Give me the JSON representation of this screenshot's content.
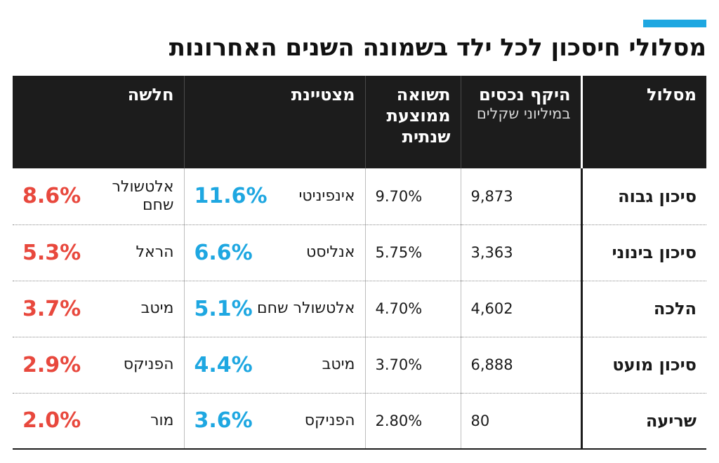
{
  "title": "מסלולי חיסכון לכל ילד בשמונה השנים האחרונות",
  "headers": {
    "route": "מסלול",
    "assets": "היקף נכסים",
    "assets_unit": "במיליוני שקלים",
    "return": "תשואה ממוצעת שנתית",
    "best": "מצטיינת",
    "worst": "חלשה"
  },
  "colors": {
    "accent": "#1ea7e1",
    "best": "#1ea7e1",
    "worst": "#e8483d",
    "header_bg": "#1c1c1c"
  },
  "chart_data": {
    "type": "table",
    "columns": [
      "מסלול",
      "היקף נכסים במיליוני שקלים",
      "תשואה ממוצעת שנתית",
      "מצטיינת",
      "חלשה"
    ],
    "rows": [
      {
        "route": "סיכון גבוה",
        "assets": "9,873",
        "avg_return": "9.70%",
        "best_fund": "אינפיניטי",
        "best_return": "11.6%",
        "worst_fund": "אלטשולר שחם",
        "worst_return": "8.6%"
      },
      {
        "route": "סיכון בינוני",
        "assets": "3,363",
        "avg_return": "5.75%",
        "best_fund": "אנליסט",
        "best_return": "6.6%",
        "worst_fund": "הראל",
        "worst_return": "5.3%"
      },
      {
        "route": "הלכה",
        "assets": "4,602",
        "avg_return": "4.70%",
        "best_fund": "אלטשולר שחם",
        "best_return": "5.1%",
        "worst_fund": "מיטב",
        "worst_return": "3.7%"
      },
      {
        "route": "סיכון מועט",
        "assets": "6,888",
        "avg_return": "3.70%",
        "best_fund": "מיטב",
        "best_return": "4.4%",
        "worst_fund": "הפניקס",
        "worst_return": "2.9%"
      },
      {
        "route": "שריעה",
        "assets": "80",
        "avg_return": "2.80%",
        "best_fund": "הפניקס",
        "best_return": "3.6%",
        "worst_fund": "מור",
        "worst_return": "2.0%"
      }
    ]
  }
}
